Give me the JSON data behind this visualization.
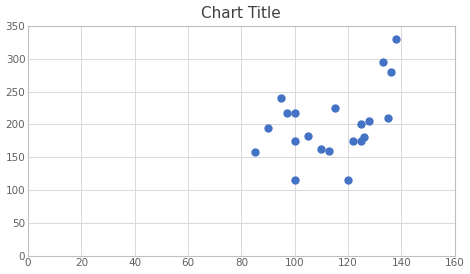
{
  "title": "Chart Title",
  "x_data": [
    85,
    90,
    95,
    97,
    100,
    100,
    100,
    105,
    110,
    113,
    115,
    120,
    122,
    125,
    125,
    126,
    128,
    133,
    135,
    136,
    138
  ],
  "y_data": [
    158,
    195,
    240,
    218,
    175,
    217,
    115,
    183,
    162,
    160,
    225,
    115,
    175,
    175,
    200,
    180,
    205,
    295,
    210,
    280,
    330
  ],
  "dot_color": "#4472c4",
  "xlim": [
    0,
    160
  ],
  "ylim": [
    0,
    350
  ],
  "xticks": [
    0,
    20,
    40,
    60,
    80,
    100,
    120,
    140,
    160
  ],
  "yticks": [
    0,
    50,
    100,
    150,
    200,
    250,
    300,
    350
  ],
  "title_fontsize": 11,
  "marker_size": 25,
  "grid_color": "#d9d9d9",
  "bg_color": "#ffffff",
  "tick_fontsize": 7.5,
  "spine_color": "#bfbfbf"
}
